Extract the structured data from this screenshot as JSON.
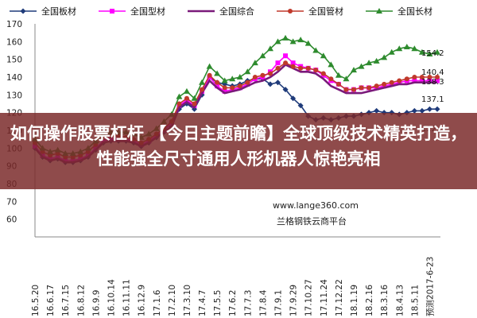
{
  "chart_data": {
    "type": "line",
    "ylim": [
      50,
      170
    ],
    "yticks": [
      50,
      60,
      70,
      80,
      90,
      100,
      110,
      120,
      130,
      140,
      150,
      160,
      170
    ],
    "xlabels": [
      "16.5.20",
      "16.6.3",
      "16.6.17",
      "16.7.1",
      "16.7.15",
      "16.7.29",
      "16.8.12",
      "16.8.26",
      "16.9.9",
      "16.9.23",
      "16.10.14",
      "16.10.28",
      "16.11.11",
      "16.11.25",
      "16.12.9",
      "16.12.23",
      "17.1.6",
      "17.1.20",
      "17.2.10",
      "17.2.24",
      "17.3.10",
      "17.3.24",
      "17.4.7",
      "17.4.21",
      "17.5.5",
      "17.5.19",
      "17.6.2",
      "17.6.16",
      "17.7.3",
      "17.7.17",
      "17.8.4",
      "17.8.18",
      "17.9.1",
      "17.9.15",
      "17.9.29",
      "17.10.13",
      "17.10.27",
      "17.11.10",
      "17.11.24",
      "17.12.8",
      "17.12.22",
      "18.1.5",
      "18.1.19",
      "18.2.2",
      "18.2.16",
      "18.3.2",
      "18.3.16",
      "18.3.30",
      "18.4.13",
      "18.4.27",
      "18.5.11",
      "18.5.25",
      "18.6.8",
      "18.6.22"
    ],
    "x_tick_labels": [
      "16.5.20",
      "16.6.3",
      "16.6.17",
      "16.7.1",
      "16.7.15",
      "16.7.29",
      "16.8.12",
      "16.8.26",
      "16.9.9",
      "16.9.23",
      "16.10.14",
      "16.10.28",
      "16.11.11",
      "16.11.25",
      "16.12.9",
      "16.12.23",
      "17.1.6",
      "17.1.20",
      "17.2.10",
      "17.2.24",
      "17.3.10",
      "17.3.24",
      "17.4.7",
      "17.4.21",
      "17.5.5",
      "17.5.19",
      "17.6.2",
      "17.6.16",
      "17.7.3",
      "17.7.17",
      "17.8.4",
      "17.8.18",
      "17.9.1",
      "17.9.15",
      "17.9.29",
      "17.10.13",
      "17.10.27",
      "17.11.10",
      "17.11.24",
      "17.12.8",
      "17.12.22",
      "18.1.5",
      "18.1.19",
      "18.2.2",
      "18.2.16",
      "18.3.2",
      "18.3.16",
      "18.3.30",
      "18.4.13",
      "18.4.27",
      "18.5.11",
      "18.5.25",
      "18.6.8",
      "18.6.22"
    ],
    "visible_xlabels": [
      "16.5.20",
      "16.6.3",
      "16.6.17",
      "16.7.1",
      "16.7.15",
      "16.7.29",
      "16.8.12",
      "16.8.26",
      "16.9.9",
      "16.9.23",
      "16.10.14",
      "16.10.28",
      "16.11.11",
      "16.11.25",
      "16.12.9",
      "16.12.23",
      "17.1.6",
      "17.1.20",
      "17.2.10",
      "17.2.24",
      "17.3.10",
      "17.3.24",
      "17.4.7",
      "17.4.21",
      "17.5.5",
      "17.5.19",
      "17.6.2",
      "17.6.16",
      "17.7.3",
      "17.7.17",
      "17.8.4",
      "17.8.18",
      "17.9.1",
      "17.9.15",
      "17.9.29",
      "17.10.13",
      "17.10.27",
      "17.11.10",
      "17.11.24",
      "17.12.8",
      "17.12.22",
      "18.1.5",
      "18.1.19",
      "18.2.2",
      "18.2.16",
      "18.3.2",
      "18.3.16",
      "18.3.30",
      "18.4.13",
      "18.4.27",
      "18.5.11",
      "18.5.25",
      "18.6.8",
      "18.6.22"
    ],
    "shown_xlabels": [
      "16.5.20",
      "16.6.3",
      "16.6.17",
      "16.7.1",
      "16.7.15",
      "16.7.29",
      "16.8.12",
      "16.8.26",
      "16.9.9",
      "16.9.23",
      "16.10.14",
      "16.10.28",
      "16.11.11",
      "16.11.25",
      "16.12.9",
      "16.12.23",
      "17.1.6",
      "17.1.20",
      "17.2.10",
      "17.2.24",
      "17.3.10",
      "17.3.24",
      "17.4.7",
      "17.4.21",
      "17.5.5",
      "17.5.19",
      "17.6.2",
      "17.6.16",
      "17.7.3",
      "17.7.17",
      "17.8.4",
      "17.8.18",
      "17.9.1",
      "17.9.15",
      "17.9.29",
      "17.10.13",
      "17.10.27",
      "17.11.10",
      "17.11.24",
      "17.12.8",
      "17.12.22",
      "18.1.5",
      "18.1.19",
      "18.2.2",
      "18.2.16",
      "18.3.2",
      "18.3.16",
      "18.3.30",
      "18.4.13",
      "18.4.27",
      "18.5.11",
      "18.5.25",
      "18.6.8",
      "18.6.22"
    ],
    "axis_labels_printed": [
      "16.5.20",
      "16.6.3",
      "16.6.17",
      "16.7.1",
      "16.7.15",
      "16.7.29",
      "16.8.12",
      "16.8.26",
      "16.9.9",
      "16.9.23",
      "16.10.14",
      "16.10.28",
      "16.11.11",
      "16.11.25",
      "16.12.9",
      "16.12.23",
      "17.1.6",
      "17.1.20",
      "17.2.10",
      "17.2.24",
      "17.3.10",
      "17.3.24",
      "17.4.7",
      "17.4.21",
      "17.5.5",
      "17.5.19",
      "17.6.2",
      "17.6.16",
      "17.7.3",
      "17.7.17",
      "17.8.4",
      "17.8.18",
      "17.9.1",
      "17.9.15",
      "17.9.29",
      "17.10.13",
      "17.10.27",
      "17.11.10",
      "17.11.24",
      "17.12.8",
      "17.12.22",
      "18.1.5",
      "18.1.19",
      "18.2.2",
      "18.2.16",
      "18.3.2",
      "18.3.16",
      "18.3.30",
      "18.4.13",
      "18.4.27",
      "18.5.11",
      "18.5.25",
      "18.6.8",
      "18.6.22"
    ],
    "x_axis_tick_labels": [
      "16.5.20",
      "16.6.3",
      "16.6.17",
      "16.7.1",
      "16.7.15",
      "16.7.29",
      "16.8.12",
      "16.8.26",
      "16.9.9",
      "16.9.23",
      "16.10.14",
      "16.10.28",
      "16.11.11",
      "16.11.25",
      "16.12.9",
      "16.12.23",
      "17.1.6",
      "17.1.20",
      "17.2.10",
      "17.2.24",
      "17.3.10",
      "17.3.24",
      "17.4.7",
      "17.4.21",
      "17.5.5",
      "17.5.19",
      "17.6.2",
      "17.6.16",
      "17.7.3",
      "17.7.17",
      "17.8.4",
      "17.8.18",
      "17.9.1",
      "17.9.15",
      "17.9.29",
      "17.10.13",
      "17.10.27",
      "17.11.10",
      "17.11.24",
      "17.12.8",
      "17.12.22",
      "18.1.5",
      "18.1.19",
      "18.2.2",
      "18.2.16",
      "18.3.2",
      "18.3.16",
      "18.3.30",
      "18.4.13",
      "18.4.27",
      "18.5.11",
      "18.5.25",
      "18.6.8",
      "18.6.22"
    ],
    "categories": [
      "16.5.20",
      "16.6.3",
      "16.6.17",
      "16.7.1",
      "16.7.15",
      "16.7.29",
      "16.8.12",
      "16.8.26",
      "16.9.9",
      "16.9.23",
      "16.10.14",
      "16.10.28",
      "16.11.11",
      "16.11.25",
      "16.12.9",
      "16.12.23",
      "17.1.6",
      "17.1.20",
      "17.2.10",
      "17.2.24",
      "17.3.10",
      "17.3.24",
      "17.4.7",
      "17.4.21",
      "17.5.5",
      "17.5.19",
      "17.6.2",
      "17.6.16",
      "17.7.3",
      "17.7.17",
      "17.8.4",
      "17.8.18",
      "17.9.1",
      "17.9.15",
      "17.9.29",
      "17.10.13",
      "17.10.27",
      "17.11.10",
      "17.11.24",
      "17.12.8",
      "17.12.22",
      "18.1.5",
      "18.1.19",
      "18.2.2",
      "18.2.16",
      "18.3.2",
      "18.3.16",
      "18.3.30",
      "18.4.13",
      "18.4.27",
      "18.5.11",
      "18.5.25",
      "18.6.8",
      "18.6.22"
    ],
    "last_label": "预测2017-6-23",
    "legend_position": "top",
    "grid": false,
    "series": [
      {
        "name": "全国板材",
        "color": "#1f3b7a",
        "marker": "diamond",
        "values": [
          100,
          95,
          93,
          94,
          92,
          92,
          93,
          95,
          99,
          103,
          104,
          104,
          104,
          103,
          101,
          103,
          106,
          109,
          112,
          122,
          125,
          122,
          130,
          140,
          137,
          136,
          135,
          136,
          138,
          139,
          139,
          136,
          137,
          133,
          128,
          124,
          118,
          116,
          117,
          116,
          117,
          118,
          118,
          119,
          120,
          121,
          120,
          120,
          119,
          120,
          121,
          121,
          122,
          122
        ],
        "end_label": "122.2"
      },
      {
        "name": "全国型材",
        "color": "#ff00ff",
        "marker": "square",
        "values": [
          101,
          96,
          94,
          95,
          93,
          93,
          94,
          96,
          100,
          104,
          105,
          105,
          105,
          104,
          102,
          104,
          107,
          110,
          114,
          124,
          127,
          124,
          132,
          140,
          135,
          132,
          133,
          134,
          136,
          139,
          140,
          143,
          148,
          152,
          148,
          146,
          145,
          144,
          141,
          138,
          136,
          133,
          133,
          134,
          134,
          134,
          135,
          136,
          137,
          138,
          138,
          138,
          138,
          138
        ],
        "end_label": "138.3"
      },
      {
        "name": "全国综合",
        "color": "#7a1a7a",
        "marker": "none",
        "values": [
          100,
          95,
          93,
          94,
          92,
          92,
          93,
          95,
          99,
          103,
          104,
          104,
          104,
          103,
          101,
          103,
          106,
          109,
          112,
          123,
          126,
          123,
          131,
          138,
          134,
          131,
          132,
          133,
          135,
          137,
          138,
          140,
          143,
          147,
          145,
          143,
          143,
          142,
          139,
          135,
          133,
          131,
          131,
          131,
          132,
          133,
          134,
          135,
          136,
          136,
          137,
          137,
          137,
          137
        ],
        "end_label": "137.1"
      },
      {
        "name": "全国管材",
        "color": "#c0392b",
        "marker": "circle",
        "values": [
          103,
          98,
          96,
          97,
          95,
          95,
          96,
          98,
          102,
          106,
          107,
          107,
          106,
          105,
          103,
          105,
          108,
          111,
          115,
          125,
          128,
          125,
          133,
          141,
          137,
          134,
          134,
          135,
          137,
          140,
          141,
          142,
          145,
          148,
          146,
          145,
          145,
          144,
          142,
          139,
          136,
          133,
          133,
          134,
          134,
          135,
          136,
          137,
          138,
          139,
          140,
          140,
          140,
          140
        ],
        "end_label": "140.4"
      },
      {
        "name": "全国长材",
        "color": "#2e8b2e",
        "marker": "triangle",
        "values": [
          105,
          100,
          98,
          99,
          97,
          97,
          98,
          100,
          104,
          108,
          109,
          109,
          109,
          108,
          106,
          108,
          111,
          115,
          119,
          129,
          132,
          128,
          137,
          146,
          142,
          138,
          139,
          140,
          143,
          148,
          152,
          156,
          160,
          162,
          160,
          161,
          159,
          155,
          152,
          147,
          141,
          139,
          144,
          146,
          148,
          149,
          151,
          154,
          156,
          157,
          156,
          154,
          153,
          154
        ],
        "end_label": "154.2"
      }
    ]
  },
  "legend": {
    "items": [
      "全国板材",
      "全国型材",
      "全国综合",
      "全国管材",
      "全国长材"
    ]
  },
  "banner": {
    "text": "如何操作股票杠杆 【今日主题前瞻】全球顶级技术精英打造，性能强全尺寸通用人形机器人惊艳亮相"
  },
  "watermark": {
    "url": "www.lange360.com",
    "name": "兰格钢铁云商平台"
  }
}
